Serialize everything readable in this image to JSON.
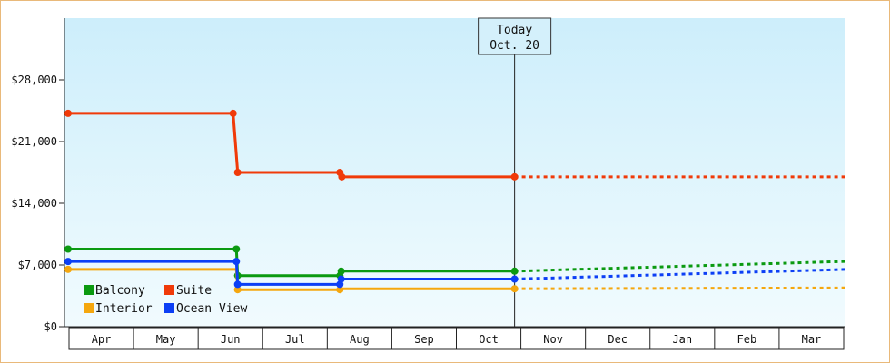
{
  "chart_data": {
    "type": "line",
    "categories": [
      "Apr",
      "May",
      "Jun",
      "Jul",
      "Aug",
      "Sep",
      "Oct",
      "Nov",
      "Dec",
      "Jan",
      "Feb",
      "Mar"
    ],
    "ylim": [
      0,
      35000
    ],
    "yticks": [
      0,
      7000,
      14000,
      21000,
      28000
    ],
    "ytick_labels": [
      "$0",
      "$7,000",
      "$14,000",
      "$21,000",
      "$28,000"
    ],
    "legend": "bottom-left",
    "today": {
      "label_line1": "Today",
      "label_line2": "Oct. 20",
      "x": 6.9
    },
    "background": {
      "top": "#cdeefb",
      "bottom": "#f1fbfe"
    },
    "series": [
      {
        "name": "Balcony",
        "color": "#0b9a11",
        "actual": [
          [
            0,
            8800
          ],
          [
            2.6,
            8800
          ],
          [
            2.62,
            5800
          ],
          [
            4.2,
            5800
          ],
          [
            4.22,
            6300
          ],
          [
            6.9,
            6300
          ]
        ],
        "markers": [
          [
            0,
            8800
          ],
          [
            2.6,
            8800
          ],
          [
            2.62,
            5800
          ],
          [
            4.2,
            5800
          ],
          [
            4.22,
            6300
          ],
          [
            6.9,
            6300
          ]
        ],
        "projected": [
          [
            6.9,
            6300
          ],
          [
            12,
            7400
          ]
        ]
      },
      {
        "name": "Suite",
        "color": "#f03a09",
        "actual": [
          [
            0,
            24200
          ],
          [
            2.55,
            24200
          ],
          [
            2.62,
            17500
          ],
          [
            4.2,
            17500
          ],
          [
            4.23,
            17000
          ],
          [
            6.9,
            17000
          ]
        ],
        "markers": [
          [
            0,
            24200
          ],
          [
            2.55,
            24200
          ],
          [
            2.62,
            17500
          ],
          [
            4.2,
            17500
          ],
          [
            4.23,
            17000
          ],
          [
            6.9,
            17000
          ]
        ],
        "projected": [
          [
            6.9,
            17000
          ],
          [
            12,
            17000
          ]
        ]
      },
      {
        "name": "Interior",
        "color": "#f5a70e",
        "actual": [
          [
            0,
            6500
          ],
          [
            2.6,
            6500
          ],
          [
            2.62,
            4200
          ],
          [
            4.2,
            4200
          ],
          [
            4.22,
            4300
          ],
          [
            6.9,
            4300
          ]
        ],
        "markers": [
          [
            0,
            6500
          ],
          [
            2.62,
            4200
          ],
          [
            4.2,
            4200
          ],
          [
            6.9,
            4300
          ]
        ],
        "projected": [
          [
            6.9,
            4300
          ],
          [
            12,
            4400
          ]
        ]
      },
      {
        "name": "Ocean View",
        "color": "#0c3ff5",
        "actual": [
          [
            0,
            7400
          ],
          [
            2.6,
            7400
          ],
          [
            2.62,
            4800
          ],
          [
            4.2,
            4800
          ],
          [
            4.22,
            5400
          ],
          [
            6.9,
            5400
          ]
        ],
        "markers": [
          [
            0,
            7400
          ],
          [
            2.6,
            7400
          ],
          [
            2.62,
            4800
          ],
          [
            4.2,
            4800
          ],
          [
            4.22,
            5400
          ],
          [
            6.9,
            5400
          ]
        ],
        "projected": [
          [
            6.9,
            5400
          ],
          [
            12,
            6500
          ]
        ]
      }
    ]
  }
}
